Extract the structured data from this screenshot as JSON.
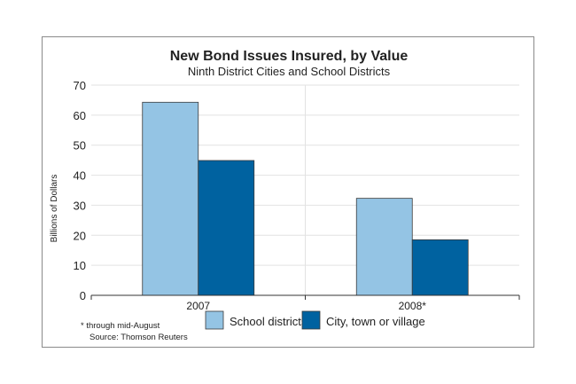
{
  "chart_data": {
    "type": "bar",
    "title": "New Bond Issues Insured, by Value",
    "subtitle": "Ninth District Cities and School Districts",
    "ylabel": "Billions of Dollars",
    "xlabel": "",
    "categories": [
      "2007",
      "2008*"
    ],
    "ylim": [
      0,
      70
    ],
    "yticks": [
      0,
      10,
      20,
      30,
      40,
      50,
      60,
      70
    ],
    "grid": true,
    "legend_position": "bottom",
    "series": [
      {
        "name": "School districts",
        "values": [
          64.3,
          32.3
        ],
        "color": "#94c4e4"
      },
      {
        "name": "City, town or village",
        "values": [
          44.9,
          18.5
        ],
        "color": "#0062a0"
      }
    ],
    "footnote": "* through mid-August",
    "source": "Source: Thomson Reuters"
  }
}
